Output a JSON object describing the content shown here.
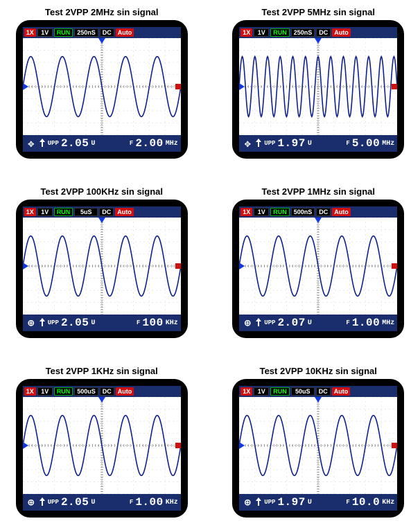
{
  "layout": {
    "cols": 2,
    "gap_row": 40,
    "gap_col": 55
  },
  "colors": {
    "frame": "#000000",
    "bar": "#1a2e6e",
    "screen_bg": "#ffffff",
    "grid_major": "#b0b0b0",
    "grid_minor": "#e0e0e0",
    "center_line": "#707070",
    "wave": "#10208a",
    "tag_red": "#d01010",
    "tag_green": "#00ff00",
    "marker_blue": "#103ae0"
  },
  "waveform": {
    "amplitude_ratio": 0.62,
    "line_width": 1.6
  },
  "screen_grid": {
    "cols": 10,
    "rows": 8,
    "minor_sub": 5
  },
  "top_tags": {
    "ix": "1X",
    "run": "RUN",
    "dc": "DC",
    "auto": "Auto"
  },
  "scopes": [
    {
      "title": "Test 2VPP 2MHz sin signal",
      "vdiv": "1V",
      "tdiv": "250nS",
      "cycles": 5,
      "trig_left_pct": 50,
      "sym": "✥",
      "vpp_label": "UPP",
      "vpp_val": "2.05",
      "vpp_unit": "U",
      "f_label": "F",
      "f_val": "2.00",
      "f_unit": "MHz"
    },
    {
      "title": "Test 2VPP 5MHz sin signal",
      "vdiv": "1V",
      "tdiv": "250nS",
      "cycles": 12.5,
      "trig_left_pct": 50,
      "sym": "✥",
      "vpp_label": "UPP",
      "vpp_val": "1.97",
      "vpp_unit": "U",
      "f_label": "F",
      "f_val": "5.00",
      "f_unit": "MHz"
    },
    {
      "title": "Test 2VPP 100KHz sin signal",
      "vdiv": "1V",
      "tdiv": "5uS",
      "cycles": 5,
      "trig_left_pct": 50,
      "sym": "⊕",
      "vpp_label": "UPP",
      "vpp_val": "2.05",
      "vpp_unit": "U",
      "f_label": "F",
      "f_val": "100",
      "f_unit": "KHz"
    },
    {
      "title": "Test 2VPP 1MHz sin signal",
      "vdiv": "1V",
      "tdiv": "500nS",
      "cycles": 5,
      "trig_left_pct": 50,
      "sym": "⊕",
      "vpp_label": "UPP",
      "vpp_val": "2.07",
      "vpp_unit": "U",
      "f_label": "F",
      "f_val": "1.00",
      "f_unit": "MHz"
    },
    {
      "title": "Test 2VPP 1KHz sin signal",
      "vdiv": "1V",
      "tdiv": "500uS",
      "cycles": 5,
      "trig_left_pct": 50,
      "sym": "⊕",
      "vpp_label": "UPP",
      "vpp_val": "2.05",
      "vpp_unit": "U",
      "f_label": "F",
      "f_val": "1.00",
      "f_unit": "KHz"
    },
    {
      "title": "Test 2VPP 10KHz sin signal",
      "vdiv": "1V",
      "tdiv": "50uS",
      "cycles": 5,
      "trig_left_pct": 50,
      "sym": "⊕",
      "vpp_label": "UPP",
      "vpp_val": "1.97",
      "vpp_unit": "U",
      "f_label": "F",
      "f_val": "10.0",
      "f_unit": "KHz"
    }
  ]
}
